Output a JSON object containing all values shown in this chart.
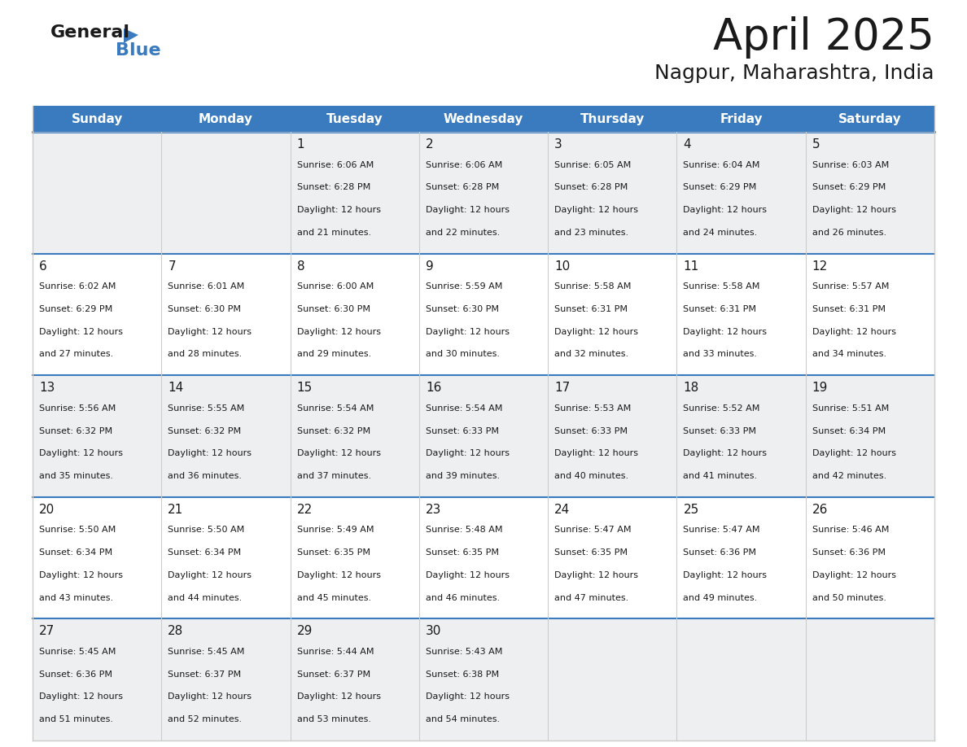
{
  "title": "April 2025",
  "subtitle": "Nagpur, Maharashtra, India",
  "header_bg_color": "#3a7bbf",
  "header_text_color": "#ffffff",
  "row_bg_colors": [
    "#eeeff0",
    "#ffffff"
  ],
  "separator_color": "#3a7bbf",
  "border_color": "#cccccc",
  "text_color": "#1a1a1a",
  "day_names": [
    "Sunday",
    "Monday",
    "Tuesday",
    "Wednesday",
    "Thursday",
    "Friday",
    "Saturday"
  ],
  "calendar_data": [
    [
      {
        "day": "",
        "sunrise": "",
        "sunset": "",
        "daylight": ""
      },
      {
        "day": "",
        "sunrise": "",
        "sunset": "",
        "daylight": ""
      },
      {
        "day": "1",
        "sunrise": "6:06 AM",
        "sunset": "6:28 PM",
        "daylight": "12 hours\nand 21 minutes."
      },
      {
        "day": "2",
        "sunrise": "6:06 AM",
        "sunset": "6:28 PM",
        "daylight": "12 hours\nand 22 minutes."
      },
      {
        "day": "3",
        "sunrise": "6:05 AM",
        "sunset": "6:28 PM",
        "daylight": "12 hours\nand 23 minutes."
      },
      {
        "day": "4",
        "sunrise": "6:04 AM",
        "sunset": "6:29 PM",
        "daylight": "12 hours\nand 24 minutes."
      },
      {
        "day": "5",
        "sunrise": "6:03 AM",
        "sunset": "6:29 PM",
        "daylight": "12 hours\nand 26 minutes."
      }
    ],
    [
      {
        "day": "6",
        "sunrise": "6:02 AM",
        "sunset": "6:29 PM",
        "daylight": "12 hours\nand 27 minutes."
      },
      {
        "day": "7",
        "sunrise": "6:01 AM",
        "sunset": "6:30 PM",
        "daylight": "12 hours\nand 28 minutes."
      },
      {
        "day": "8",
        "sunrise": "6:00 AM",
        "sunset": "6:30 PM",
        "daylight": "12 hours\nand 29 minutes."
      },
      {
        "day": "9",
        "sunrise": "5:59 AM",
        "sunset": "6:30 PM",
        "daylight": "12 hours\nand 30 minutes."
      },
      {
        "day": "10",
        "sunrise": "5:58 AM",
        "sunset": "6:31 PM",
        "daylight": "12 hours\nand 32 minutes."
      },
      {
        "day": "11",
        "sunrise": "5:58 AM",
        "sunset": "6:31 PM",
        "daylight": "12 hours\nand 33 minutes."
      },
      {
        "day": "12",
        "sunrise": "5:57 AM",
        "sunset": "6:31 PM",
        "daylight": "12 hours\nand 34 minutes."
      }
    ],
    [
      {
        "day": "13",
        "sunrise": "5:56 AM",
        "sunset": "6:32 PM",
        "daylight": "12 hours\nand 35 minutes."
      },
      {
        "day": "14",
        "sunrise": "5:55 AM",
        "sunset": "6:32 PM",
        "daylight": "12 hours\nand 36 minutes."
      },
      {
        "day": "15",
        "sunrise": "5:54 AM",
        "sunset": "6:32 PM",
        "daylight": "12 hours\nand 37 minutes."
      },
      {
        "day": "16",
        "sunrise": "5:54 AM",
        "sunset": "6:33 PM",
        "daylight": "12 hours\nand 39 minutes."
      },
      {
        "day": "17",
        "sunrise": "5:53 AM",
        "sunset": "6:33 PM",
        "daylight": "12 hours\nand 40 minutes."
      },
      {
        "day": "18",
        "sunrise": "5:52 AM",
        "sunset": "6:33 PM",
        "daylight": "12 hours\nand 41 minutes."
      },
      {
        "day": "19",
        "sunrise": "5:51 AM",
        "sunset": "6:34 PM",
        "daylight": "12 hours\nand 42 minutes."
      }
    ],
    [
      {
        "day": "20",
        "sunrise": "5:50 AM",
        "sunset": "6:34 PM",
        "daylight": "12 hours\nand 43 minutes."
      },
      {
        "day": "21",
        "sunrise": "5:50 AM",
        "sunset": "6:34 PM",
        "daylight": "12 hours\nand 44 minutes."
      },
      {
        "day": "22",
        "sunrise": "5:49 AM",
        "sunset": "6:35 PM",
        "daylight": "12 hours\nand 45 minutes."
      },
      {
        "day": "23",
        "sunrise": "5:48 AM",
        "sunset": "6:35 PM",
        "daylight": "12 hours\nand 46 minutes."
      },
      {
        "day": "24",
        "sunrise": "5:47 AM",
        "sunset": "6:35 PM",
        "daylight": "12 hours\nand 47 minutes."
      },
      {
        "day": "25",
        "sunrise": "5:47 AM",
        "sunset": "6:36 PM",
        "daylight": "12 hours\nand 49 minutes."
      },
      {
        "day": "26",
        "sunrise": "5:46 AM",
        "sunset": "6:36 PM",
        "daylight": "12 hours\nand 50 minutes."
      }
    ],
    [
      {
        "day": "27",
        "sunrise": "5:45 AM",
        "sunset": "6:36 PM",
        "daylight": "12 hours\nand 51 minutes."
      },
      {
        "day": "28",
        "sunrise": "5:45 AM",
        "sunset": "6:37 PM",
        "daylight": "12 hours\nand 52 minutes."
      },
      {
        "day": "29",
        "sunrise": "5:44 AM",
        "sunset": "6:37 PM",
        "daylight": "12 hours\nand 53 minutes."
      },
      {
        "day": "30",
        "sunrise": "5:43 AM",
        "sunset": "6:38 PM",
        "daylight": "12 hours\nand 54 minutes."
      },
      {
        "day": "",
        "sunrise": "",
        "sunset": "",
        "daylight": ""
      },
      {
        "day": "",
        "sunrise": "",
        "sunset": "",
        "daylight": ""
      },
      {
        "day": "",
        "sunrise": "",
        "sunset": "",
        "daylight": ""
      }
    ]
  ],
  "figwidth": 11.88,
  "figheight": 9.18,
  "dpi": 100
}
